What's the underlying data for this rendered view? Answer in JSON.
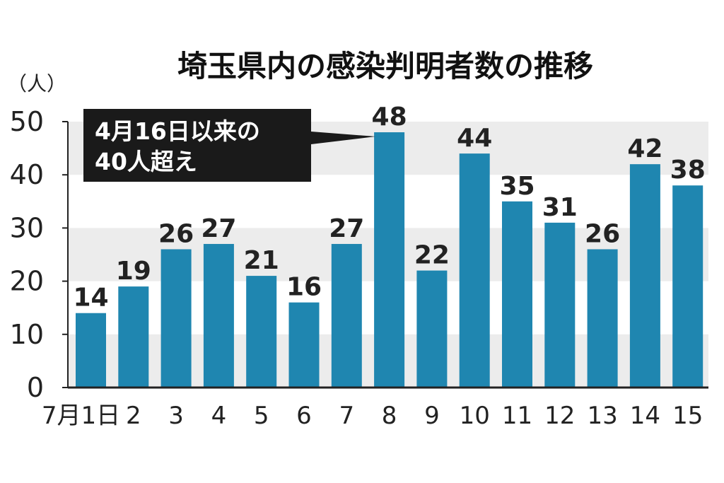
{
  "chart_data": {
    "type": "bar",
    "title": "埼玉県内の感染判明者数の推移",
    "ylabel": "（人）",
    "xlabel": "",
    "categories": [
      "7月1日",
      "2",
      "3",
      "4",
      "5",
      "6",
      "7",
      "8",
      "9",
      "10",
      "11",
      "12",
      "13",
      "14",
      "15"
    ],
    "values": [
      14,
      19,
      26,
      27,
      21,
      16,
      27,
      48,
      22,
      44,
      35,
      31,
      26,
      42,
      38
    ],
    "yticks": [
      0,
      10,
      20,
      30,
      40,
      50
    ],
    "ylim": [
      0,
      50
    ],
    "grid": "alternating horizontal bands",
    "legend": "none",
    "annotation": {
      "lines": [
        "4月16日以来の",
        "40人超え"
      ],
      "target_category": "8"
    }
  },
  "colors": {
    "bar": "#1f86b0",
    "band": "#ececec",
    "callout_bg": "#1a1a1a",
    "callout_text": "#ffffff",
    "axis": "#222222"
  }
}
